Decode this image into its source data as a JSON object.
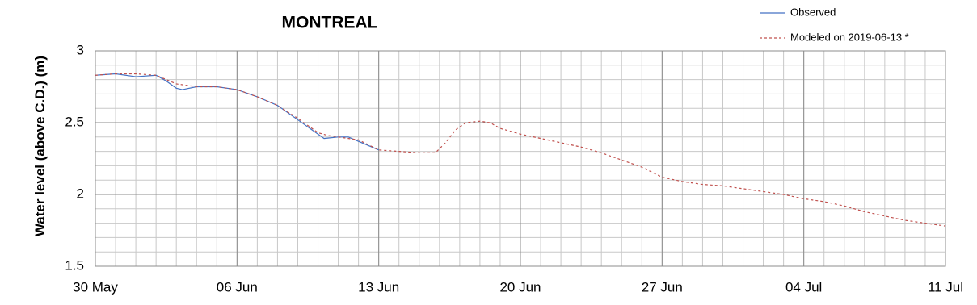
{
  "chart_data": {
    "type": "line",
    "title": "MONTREAL",
    "y_label": "Water level (above C.D.) (m)",
    "xlim": [
      0,
      42
    ],
    "xticks": [
      {
        "value": 0,
        "label": "30 May"
      },
      {
        "value": 7,
        "label": "06 Jun"
      },
      {
        "value": 14,
        "label": "13 Jun"
      },
      {
        "value": 21,
        "label": "20 Jun"
      },
      {
        "value": 28,
        "label": "27 Jun"
      },
      {
        "value": 35,
        "label": "04 Jul"
      },
      {
        "value": 42,
        "label": "11 Jul"
      }
    ],
    "ylim": [
      1.5,
      3
    ],
    "yticks": [
      1.5,
      2,
      2.5,
      3
    ],
    "grid": true,
    "minor_grid": {
      "x": 1,
      "y": 0.1
    },
    "legend": "top-right",
    "series": [
      {
        "name": "Observed",
        "color": "#4472c4",
        "dash": false,
        "x": [
          0,
          1,
          2,
          3,
          3.5,
          4,
          4.3,
          5,
          6,
          7,
          8,
          9,
          10,
          11,
          11.3,
          12,
          12.5,
          13,
          14
        ],
        "values": [
          2.83,
          2.84,
          2.82,
          2.83,
          2.79,
          2.74,
          2.73,
          2.75,
          2.75,
          2.73,
          2.68,
          2.62,
          2.52,
          2.42,
          2.39,
          2.4,
          2.4,
          2.37,
          2.31
        ]
      },
      {
        "name": "Modeled on 2019-06-13 *",
        "color": "#c0504d",
        "dash": true,
        "x": [
          0,
          1,
          2,
          3,
          4,
          5,
          6,
          7,
          8,
          9,
          10,
          11,
          11.5,
          12,
          13,
          14,
          15,
          16,
          16.8,
          17.3,
          17.8,
          18.3,
          19,
          19.5,
          20,
          21,
          22,
          23,
          24,
          25,
          26,
          27,
          28,
          29,
          30,
          31,
          32,
          33,
          34,
          35,
          36,
          37,
          38,
          39,
          40,
          41,
          42
        ],
        "values": [
          2.83,
          2.84,
          2.84,
          2.83,
          2.77,
          2.75,
          2.75,
          2.73,
          2.68,
          2.62,
          2.53,
          2.43,
          2.41,
          2.4,
          2.38,
          2.31,
          2.3,
          2.29,
          2.29,
          2.36,
          2.45,
          2.5,
          2.51,
          2.5,
          2.46,
          2.42,
          2.39,
          2.36,
          2.33,
          2.29,
          2.24,
          2.19,
          2.12,
          2.09,
          2.07,
          2.06,
          2.04,
          2.02,
          2.0,
          1.97,
          1.95,
          1.92,
          1.88,
          1.85,
          1.82,
          1.8,
          1.78
        ]
      }
    ]
  }
}
